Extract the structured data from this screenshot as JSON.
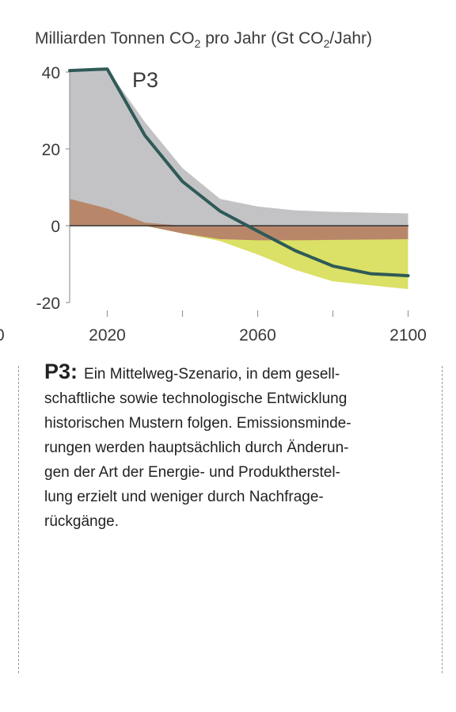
{
  "chart_data": {
    "type": "area",
    "title_parts": [
      "Milliarden Tonnen CO",
      "2",
      " pro Jahr (Gt CO",
      "2",
      "/Jahr)"
    ],
    "ylim": [
      -20,
      40
    ],
    "yticks": [
      "40",
      "20",
      "0",
      "-20"
    ],
    "xlim": [
      2010,
      2100
    ],
    "xticks": [
      {
        "x": 2020,
        "label": "2020"
      },
      {
        "x": 2060,
        "label": "2060"
      },
      {
        "x": 2100,
        "label": "2100"
      }
    ],
    "minor_xticks": [
      2040,
      2080
    ],
    "left_cut_label": "0",
    "series_label": "P3",
    "colors": {
      "gray": "#c3c3c5",
      "brown": "#b8876a",
      "yellow": "#dbe066",
      "line": "#2e5a57",
      "axis": "#999999",
      "zero": "#333333"
    },
    "x": [
      2010,
      2020,
      2030,
      2040,
      2050,
      2060,
      2070,
      2080,
      2090,
      2100
    ],
    "gray_top": [
      40.5,
      40.8,
      27,
      15,
      7,
      5,
      4,
      3.6,
      3.4,
      3.2
    ],
    "brown_top": [
      7,
      4.5,
      0.8,
      0,
      0,
      0,
      0,
      0,
      0,
      0
    ],
    "brown_bottom": [
      0,
      0,
      0,
      -2,
      -3.5,
      -3.8,
      -3.8,
      -3.7,
      -3.6,
      -3.5
    ],
    "yellow_bottom": [
      0,
      0,
      0,
      -2,
      -4,
      -7.5,
      -11.5,
      -14.5,
      -15.5,
      -16.5
    ],
    "line_values": [
      40.4,
      40.8,
      23.5,
      11.5,
      3.8,
      -1.4,
      -6.5,
      -10.5,
      -12.5,
      -13
    ]
  },
  "caption": {
    "head": "P3:",
    "lines": [
      "Ein Mittelweg-Szenario, in dem gesell-",
      "schaftliche sowie technologische Entwicklung",
      "historischen Mustern folgen. Emissionsminde-",
      "rungen werden hauptsächlich durch Änderun-",
      "gen der Art der Energie- und Produktherstel-",
      "lung erzielt und weniger durch Nachfrage-",
      "rückgänge."
    ]
  }
}
